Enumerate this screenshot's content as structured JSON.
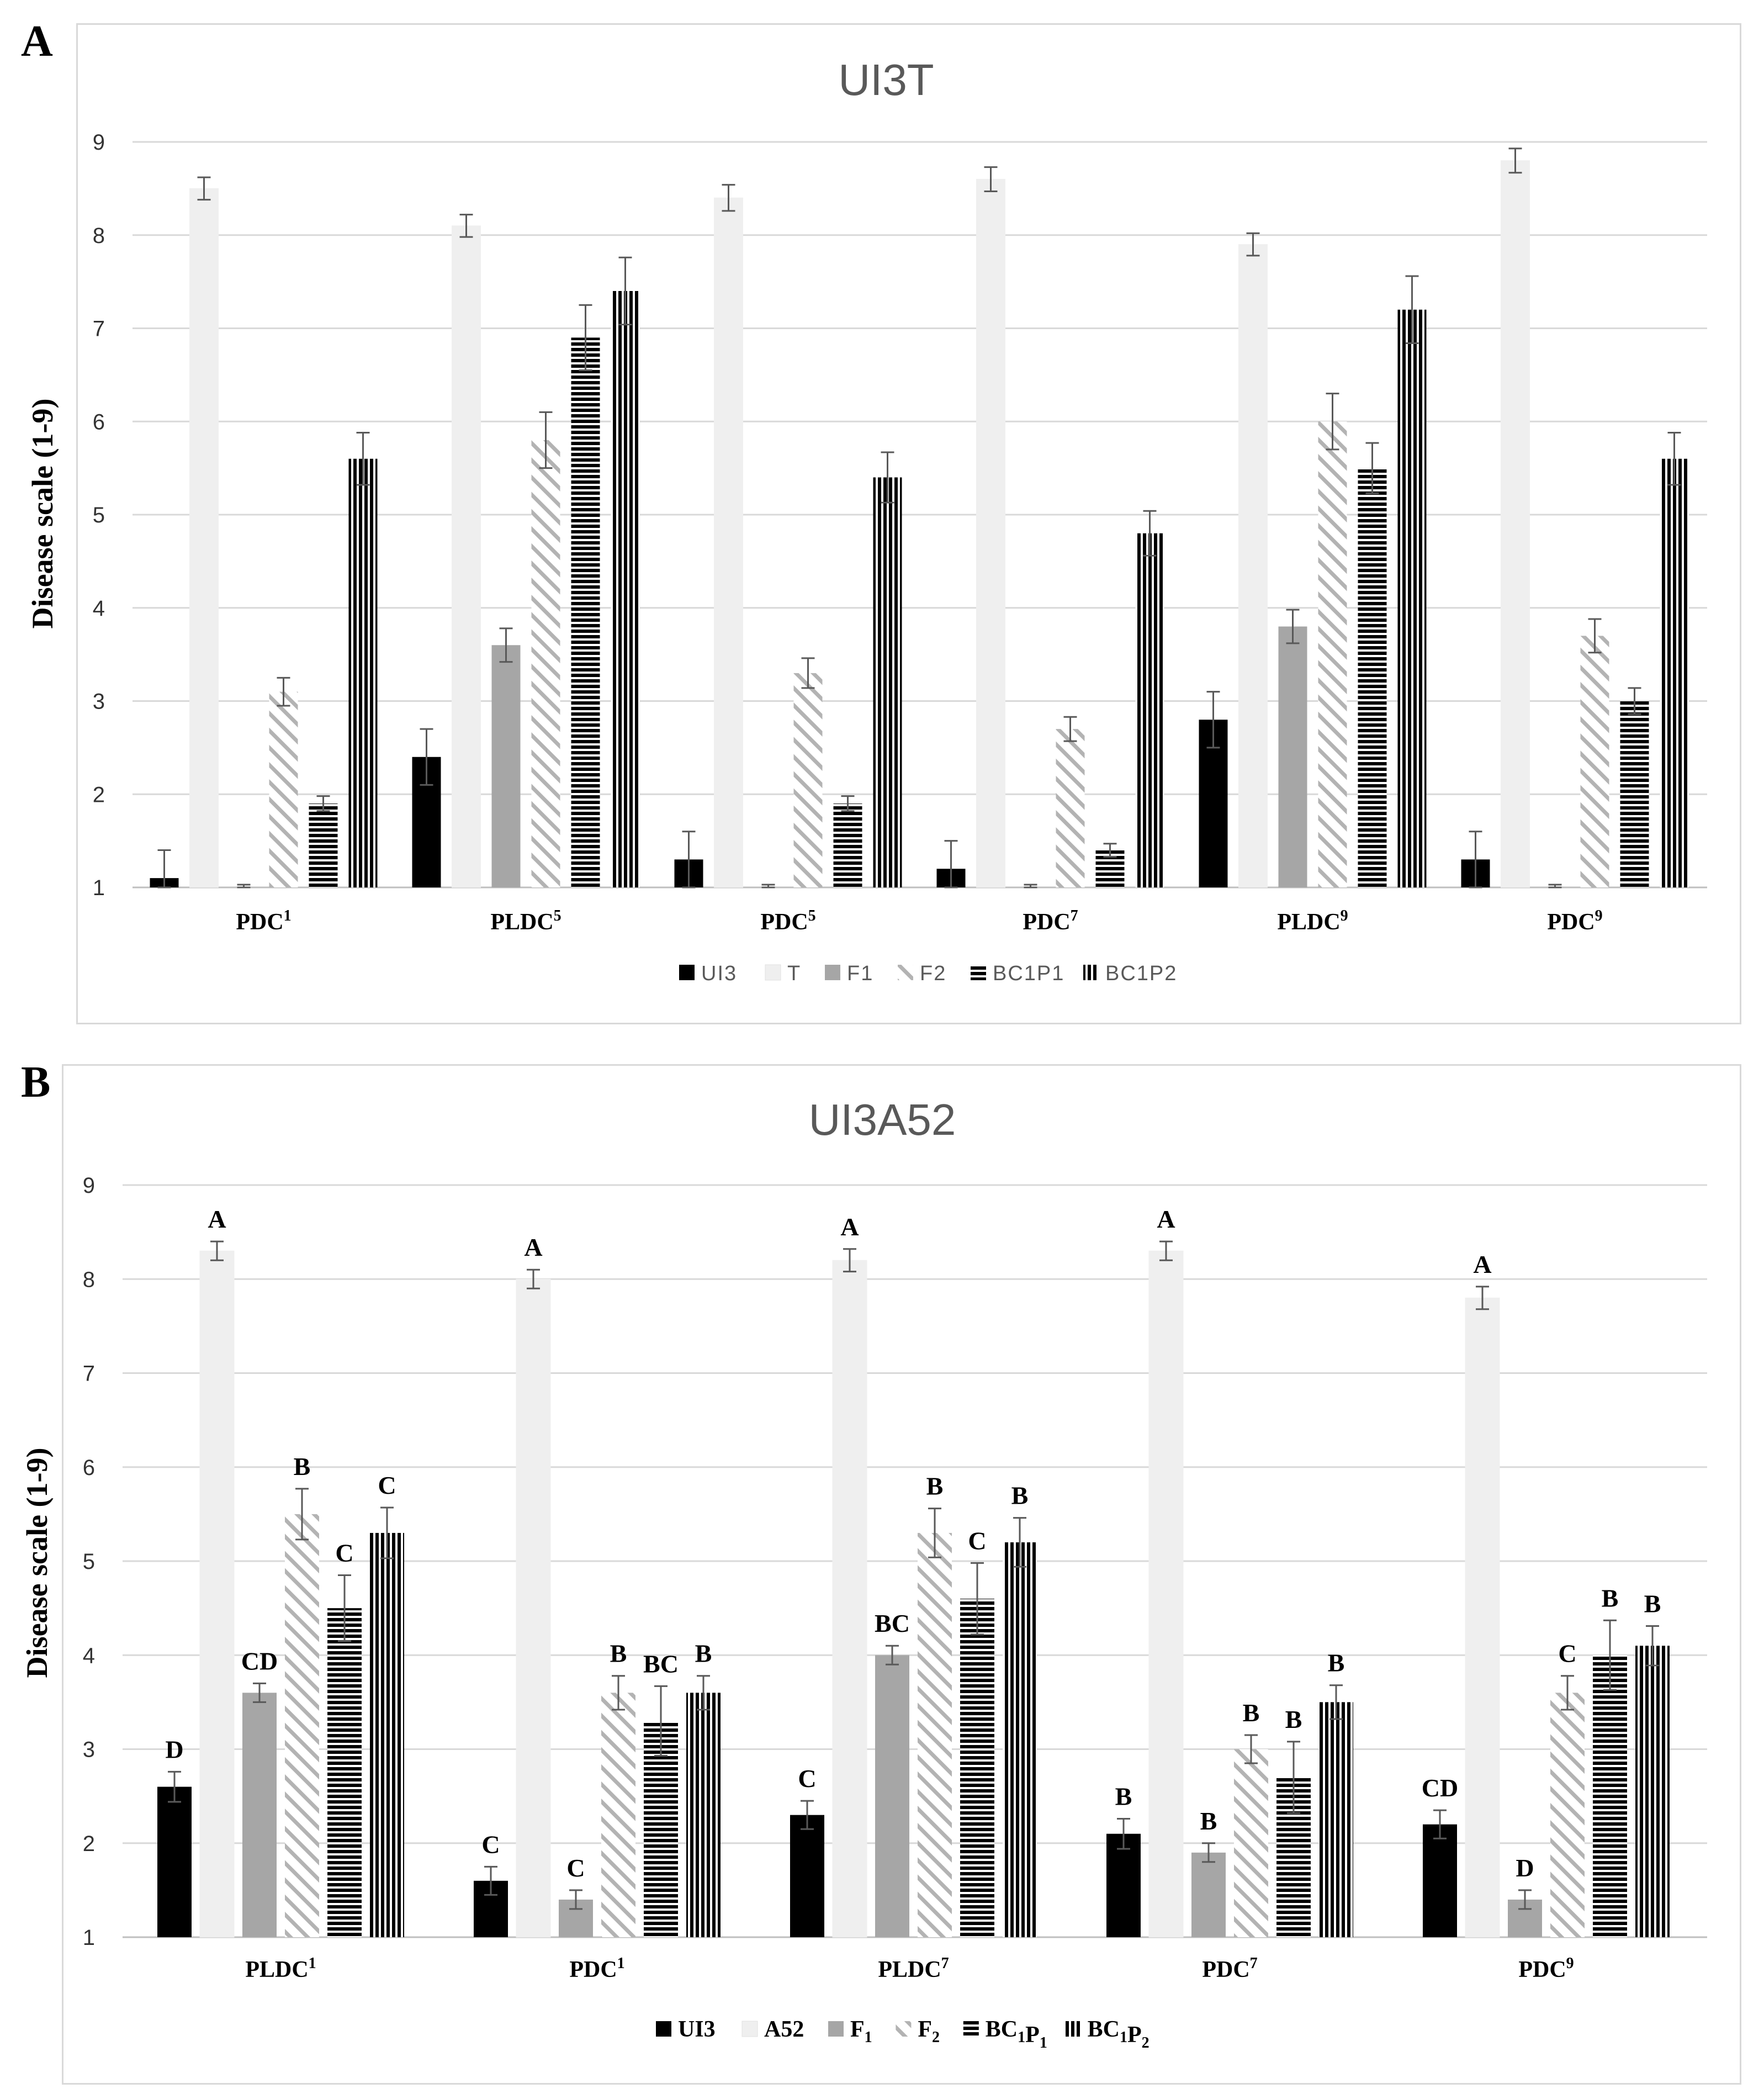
{
  "panels": [
    {
      "letter": "A",
      "chart_data": {
        "type": "bar",
        "title": "UI3T",
        "ylabel": "Disease scale (1-9)",
        "xlabel": "",
        "ylim": [
          1,
          9
        ],
        "yticks": [
          "1",
          "2",
          "3",
          "4",
          "5",
          "6",
          "7",
          "8",
          "9"
        ],
        "grid": true,
        "legend_position": "bottom",
        "categories": [
          {
            "base": "PDC",
            "sup": "1"
          },
          {
            "base": "PLDC",
            "sup": "5"
          },
          {
            "base": "PDC",
            "sup": "5"
          },
          {
            "base": "PDC",
            "sup": "7"
          },
          {
            "base": "PLDC",
            "sup": "9"
          },
          {
            "base": "PDC",
            "sup": "9"
          }
        ],
        "series": [
          {
            "name": "UI3",
            "legend": [
              {
                "t": "UI3"
              }
            ],
            "pattern": "solid-black",
            "values": [
              1.1,
              2.4,
              1.3,
              1.2,
              2.8,
              1.3
            ],
            "errors": [
              0.3,
              0.3,
              0.3,
              0.3,
              0.3,
              0.3
            ]
          },
          {
            "name": "T",
            "legend": [
              {
                "t": "T"
              }
            ],
            "pattern": "light",
            "values": [
              8.5,
              8.1,
              8.4,
              8.6,
              7.9,
              8.8
            ],
            "errors": [
              0.12,
              0.12,
              0.14,
              0.13,
              0.12,
              0.13
            ]
          },
          {
            "name": "F1",
            "legend": [
              {
                "t": "F1"
              }
            ],
            "pattern": "solid-gray",
            "values": [
              1.0,
              3.6,
              1.0,
              1.0,
              3.8,
              1.0
            ],
            "errors": [
              0.03,
              0.18,
              0.03,
              0.03,
              0.18,
              0.03
            ]
          },
          {
            "name": "F2",
            "legend": [
              {
                "t": "F2"
              }
            ],
            "pattern": "diagonal",
            "values": [
              3.1,
              5.8,
              3.3,
              2.7,
              6.0,
              3.7
            ],
            "errors": [
              0.15,
              0.3,
              0.16,
              0.13,
              0.3,
              0.18
            ]
          },
          {
            "name": "BC1P1",
            "legend": [
              {
                "t": "BC1P1"
              }
            ],
            "pattern": "horizontal",
            "values": [
              1.9,
              6.9,
              1.9,
              1.4,
              5.5,
              3.0
            ],
            "errors": [
              0.08,
              0.35,
              0.08,
              0.07,
              0.27,
              0.14
            ]
          },
          {
            "name": "BC1P2",
            "legend": [
              {
                "t": "BC1P2"
              }
            ],
            "pattern": "vertical",
            "values": [
              5.6,
              7.4,
              5.4,
              4.8,
              7.2,
              5.6
            ],
            "errors": [
              0.28,
              0.36,
              0.27,
              0.24,
              0.36,
              0.28
            ]
          }
        ]
      }
    },
    {
      "letter": "B",
      "chart_data": {
        "type": "bar",
        "title": "UI3A52",
        "ylabel": "Disease scale (1-9)",
        "xlabel": "",
        "ylim": [
          1,
          9
        ],
        "yticks": [
          "1",
          "2",
          "3",
          "4",
          "5",
          "6",
          "7",
          "8",
          "9"
        ],
        "grid": true,
        "legend_position": "bottom",
        "categories": [
          {
            "base": "PLDC",
            "sup": "1"
          },
          {
            "base": "PDC",
            "sup": "1"
          },
          {
            "base": "PLDC",
            "sup": "7"
          },
          {
            "base": "PDC",
            "sup": "7"
          },
          {
            "base": "PDC",
            "sup": "9"
          }
        ],
        "series": [
          {
            "name": "UI3",
            "legend": [
              {
                "t": "UI3"
              }
            ],
            "pattern": "solid-black",
            "values": [
              2.6,
              1.6,
              2.3,
              2.1,
              2.2
            ],
            "errors": [
              0.16,
              0.15,
              0.15,
              0.16,
              0.15
            ],
            "labels": [
              "D",
              "C",
              "C",
              "B",
              "CD"
            ]
          },
          {
            "name": "A52",
            "legend": [
              {
                "t": "A52"
              }
            ],
            "pattern": "light",
            "values": [
              8.3,
              8.0,
              8.2,
              8.3,
              7.8
            ],
            "errors": [
              0.1,
              0.1,
              0.12,
              0.1,
              0.12
            ],
            "labels": [
              "A",
              "A",
              "A",
              "A",
              "A"
            ]
          },
          {
            "name": "F1",
            "legend": [
              {
                "t": "F"
              },
              {
                "t": "1",
                "sub": true
              }
            ],
            "pattern": "solid-gray",
            "values": [
              3.6,
              1.4,
              4.0,
              1.9,
              1.4
            ],
            "errors": [
              0.1,
              0.1,
              0.1,
              0.1,
              0.1
            ],
            "labels": [
              "CD",
              "C",
              "BC",
              "B",
              "D"
            ]
          },
          {
            "name": "F2",
            "legend": [
              {
                "t": "F"
              },
              {
                "t": "2",
                "sub": true
              }
            ],
            "pattern": "diagonal",
            "values": [
              5.5,
              3.6,
              5.3,
              3.0,
              3.6
            ],
            "errors": [
              0.27,
              0.18,
              0.26,
              0.15,
              0.18
            ],
            "labels": [
              "B",
              "B",
              "B",
              "B",
              "C"
            ]
          },
          {
            "name": "BC1P1",
            "legend": [
              {
                "t": "BC"
              },
              {
                "t": "1",
                "sub": true
              },
              {
                "t": "P"
              },
              {
                "t": "1",
                "sub": true
              }
            ],
            "pattern": "horizontal",
            "values": [
              4.5,
              3.3,
              4.6,
              2.7,
              4.0
            ],
            "errors": [
              0.35,
              0.37,
              0.38,
              0.38,
              0.37
            ],
            "labels": [
              "C",
              "BC",
              "C",
              "B",
              "B"
            ]
          },
          {
            "name": "BC1P2",
            "legend": [
              {
                "t": "BC"
              },
              {
                "t": "1",
                "sub": true
              },
              {
                "t": "P"
              },
              {
                "t": "2",
                "sub": true
              }
            ],
            "pattern": "vertical",
            "values": [
              5.3,
              3.6,
              5.2,
              3.5,
              4.1
            ],
            "errors": [
              0.27,
              0.18,
              0.26,
              0.18,
              0.21
            ],
            "labels": [
              "C",
              "B",
              "B",
              "B",
              "B"
            ]
          }
        ]
      }
    }
  ]
}
